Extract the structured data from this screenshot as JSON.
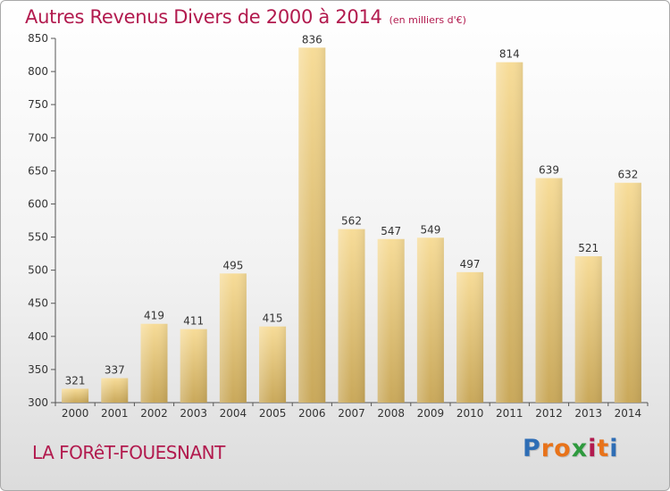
{
  "title": "Autres Revenus Divers de 2000 à 2014",
  "unit": "(en milliers d'€)",
  "place": "LA FORêT-FOUESNANT",
  "logo": {
    "letters": [
      "P",
      "r",
      "o",
      "x",
      "i",
      "t",
      "i"
    ],
    "colors": [
      "#2e6db5",
      "#e8731a",
      "#e8731a",
      "#2e9a3e",
      "#b21a4e",
      "#e8731a",
      "#2e6db5"
    ]
  },
  "chart_data": {
    "type": "bar",
    "title": "Autres Revenus Divers de 2000 à 2014",
    "categories": [
      "2000",
      "2001",
      "2002",
      "2003",
      "2004",
      "2005",
      "2006",
      "2007",
      "2008",
      "2009",
      "2010",
      "2011",
      "2012",
      "2013",
      "2014"
    ],
    "values": [
      321,
      337,
      419,
      411,
      495,
      415,
      836,
      562,
      547,
      549,
      497,
      814,
      639,
      521,
      632
    ],
    "data_labels": [
      "321",
      "337",
      "419",
      "411",
      "495",
      "415",
      "836",
      "562",
      "547",
      "549",
      "497",
      "814",
      "639",
      "521",
      "632"
    ],
    "yticks": [
      "300",
      "350",
      "400",
      "450",
      "500",
      "550",
      "600",
      "650",
      "700",
      "750",
      "800",
      "850"
    ],
    "ylim": [
      300,
      850
    ],
    "xlabel": "",
    "ylabel": "",
    "grid": false,
    "bar_color": "#e6c77a"
  }
}
